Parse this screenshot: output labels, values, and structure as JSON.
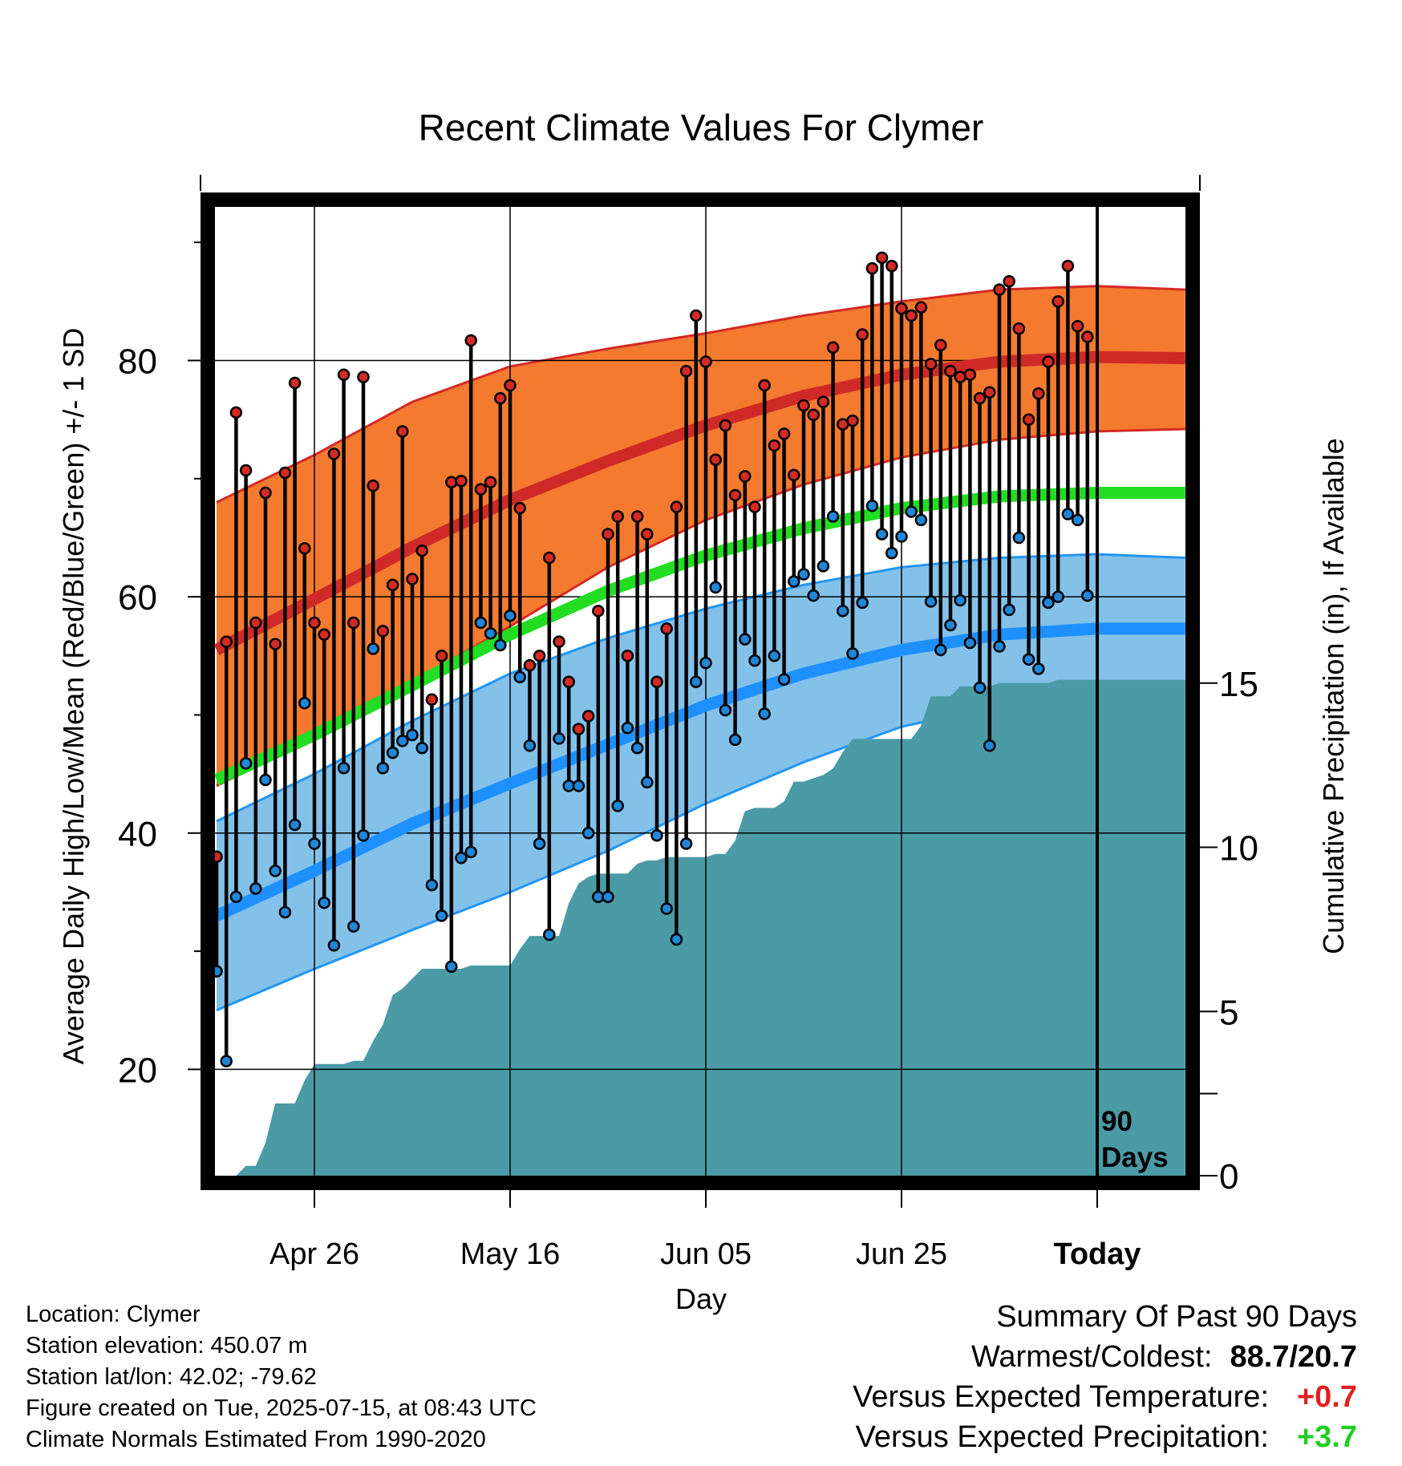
{
  "chart_data": {
    "type": "line",
    "title": "Recent Climate Values For Clymer",
    "xlabel": "Day",
    "ylabel": "Average Daily High/Low/Mean (Red/Blue/Green) +/- 1 SD",
    "y2label": "Cumulative Precipitation (in), If Available",
    "x_tick_labels": [
      "Apr 26",
      "May 16",
      "Jun 05",
      "Jun 25",
      "Today"
    ],
    "x_tick_days": [
      10,
      30,
      50,
      70,
      90
    ],
    "xlim": [
      0,
      99
    ],
    "ylim": [
      11,
      93
    ],
    "y_ticks": [
      20,
      40,
      60,
      80
    ],
    "y2lim": [
      0,
      29.5
    ],
    "y2_ticks": [
      0,
      5,
      10,
      15
    ],
    "today_marker_label": "90 Days",
    "grid": true,
    "colors": {
      "high_band": "#f47a30",
      "high_band_edge": "#d42a24",
      "high_mean": "#cf2a27",
      "low_band": "#83c1e9",
      "low_band_edge": "#2196f3",
      "low_mean": "#1e90ff",
      "mean": "#22dd22",
      "precip": "#4a9ba5",
      "high_marker": "#d42a24",
      "low_marker": "#1f86d8"
    },
    "normals_days": [
      0,
      10,
      20,
      30,
      40,
      50,
      60,
      70,
      80,
      90,
      99
    ],
    "normal_high": [
      55.5,
      59.8,
      64.2,
      68.2,
      71.5,
      74.5,
      77.0,
      78.8,
      79.9,
      80.3,
      80.2
    ],
    "normal_high_sd_upper": [
      68.0,
      72.0,
      76.5,
      79.5,
      81.0,
      82.3,
      83.8,
      85.0,
      86.0,
      86.3,
      86.0
    ],
    "normal_high_sd_lower": [
      44.0,
      48.0,
      52.8,
      57.5,
      62.5,
      66.5,
      69.5,
      71.8,
      73.3,
      74.0,
      74.2
    ],
    "normal_mean": [
      44.5,
      48.3,
      52.5,
      56.8,
      60.5,
      63.5,
      65.8,
      67.5,
      68.5,
      68.8,
      68.8
    ],
    "normal_low": [
      33.0,
      36.8,
      40.8,
      44.2,
      47.5,
      50.8,
      53.5,
      55.5,
      56.8,
      57.3,
      57.3
    ],
    "normal_low_sd_upper": [
      41.0,
      45.0,
      49.5,
      53.5,
      56.5,
      59.0,
      61.0,
      62.5,
      63.3,
      63.6,
      63.3
    ],
    "normal_low_sd_lower": [
      25.0,
      28.5,
      31.8,
      35.0,
      38.5,
      42.5,
      46.0,
      49.0,
      50.8,
      51.5,
      51.8
    ],
    "series": [
      {
        "name": "High",
        "x": [
          0,
          1,
          2,
          3,
          4,
          5,
          6,
          7,
          8,
          9,
          10,
          11,
          12,
          13,
          14,
          15,
          16,
          17,
          18,
          19,
          20,
          21,
          22,
          23,
          24,
          25,
          26,
          27,
          28,
          29,
          30,
          31,
          32,
          33,
          34,
          35,
          36,
          37,
          38,
          39,
          40,
          41,
          42,
          43,
          44,
          45,
          46,
          47,
          48,
          49,
          50,
          51,
          52,
          53,
          54,
          55,
          56,
          57,
          58,
          59,
          60,
          61,
          62,
          63,
          64,
          65,
          66,
          67,
          68,
          69,
          70,
          71,
          72,
          73,
          74,
          75,
          76,
          77,
          78,
          79,
          80,
          81,
          82,
          83,
          84,
          85,
          86,
          87,
          88,
          89
        ],
        "values": [
          38.0,
          56.2,
          75.6,
          70.7,
          57.8,
          68.8,
          56.0,
          70.5,
          78.1,
          64.1,
          57.8,
          56.8,
          72.1,
          78.8,
          57.8,
          78.6,
          69.4,
          57.1,
          61.0,
          74.0,
          61.5,
          63.9,
          51.3,
          55.0,
          69.7,
          69.8,
          81.7,
          69.1,
          69.7,
          76.8,
          77.9,
          67.5,
          54.2,
          55.0,
          63.3,
          56.2,
          52.8,
          48.8,
          49.9,
          58.8,
          65.3,
          66.8,
          55.0,
          66.8,
          65.3,
          52.8,
          57.3,
          67.6,
          79.1,
          83.8,
          79.9,
          71.6,
          74.5,
          68.6,
          70.2,
          67.6,
          77.9,
          72.8,
          73.8,
          70.3,
          76.2,
          75.4,
          76.5,
          81.1,
          74.6,
          74.9,
          82.2,
          87.8,
          88.7,
          88.0,
          84.4,
          83.8,
          84.5,
          79.7,
          81.3,
          79.1,
          78.6,
          78.8,
          76.8,
          77.3,
          86.0,
          86.7,
          82.7,
          75.0,
          77.2,
          79.9,
          85.0,
          88.0,
          82.9,
          82.0
        ]
      },
      {
        "name": "Low",
        "x": [
          0,
          1,
          2,
          3,
          4,
          5,
          6,
          7,
          8,
          9,
          10,
          11,
          12,
          13,
          14,
          15,
          16,
          17,
          18,
          19,
          20,
          21,
          22,
          23,
          24,
          25,
          26,
          27,
          28,
          29,
          30,
          31,
          32,
          33,
          34,
          35,
          36,
          37,
          38,
          39,
          40,
          41,
          42,
          43,
          44,
          45,
          46,
          47,
          48,
          49,
          50,
          51,
          52,
          53,
          54,
          55,
          56,
          57,
          58,
          59,
          60,
          61,
          62,
          63,
          64,
          65,
          66,
          67,
          68,
          69,
          70,
          71,
          72,
          73,
          74,
          75,
          76,
          77,
          78,
          79,
          80,
          81,
          82,
          83,
          84,
          85,
          86,
          87,
          88,
          89
        ],
        "values": [
          28.3,
          20.7,
          34.6,
          45.9,
          35.3,
          44.5,
          36.8,
          33.3,
          40.7,
          51.0,
          39.1,
          34.1,
          30.5,
          45.5,
          32.1,
          39.8,
          55.6,
          45.5,
          46.8,
          47.8,
          48.3,
          47.2,
          35.6,
          33.0,
          28.7,
          37.9,
          38.4,
          57.8,
          56.9,
          55.9,
          58.4,
          53.2,
          47.4,
          39.1,
          31.4,
          48.0,
          44.0,
          44.0,
          40.0,
          34.6,
          34.6,
          42.3,
          48.9,
          47.2,
          44.3,
          39.8,
          33.6,
          31.0,
          39.1,
          52.8,
          54.4,
          60.8,
          50.4,
          47.9,
          56.4,
          54.6,
          50.1,
          55.0,
          53.0,
          61.3,
          61.9,
          60.1,
          62.6,
          66.8,
          58.8,
          55.2,
          59.5,
          67.7,
          65.3,
          63.7,
          65.1,
          67.2,
          66.5,
          59.6,
          55.5,
          57.6,
          59.7,
          56.1,
          52.3,
          47.4,
          55.8,
          58.9,
          65.0,
          54.7,
          53.9,
          59.5,
          60.0,
          67.0,
          66.5,
          60.1
        ]
      }
    ],
    "precip_cumulative": {
      "x": [
        0,
        2,
        3,
        4,
        5,
        6,
        7,
        8,
        9,
        10,
        11,
        12,
        13,
        14,
        15,
        16,
        17,
        18,
        19,
        20,
        21,
        22,
        23,
        24,
        25,
        26,
        27,
        28,
        29,
        30,
        31,
        32,
        33,
        34,
        35,
        36,
        37,
        38,
        39,
        40,
        41,
        42,
        43,
        44,
        45,
        46,
        47,
        48,
        49,
        50,
        51,
        52,
        53,
        54,
        55,
        56,
        57,
        58,
        59,
        60,
        61,
        62,
        63,
        64,
        65,
        66,
        67,
        68,
        69,
        70,
        71,
        72,
        73,
        74,
        75,
        76,
        77,
        78,
        79,
        80,
        81,
        82,
        83,
        84,
        85,
        86,
        87,
        88,
        89,
        90,
        91,
        92,
        93,
        94,
        95,
        96,
        97,
        98,
        99
      ],
      "values": [
        0.0,
        0.0,
        0.3,
        0.3,
        1.0,
        2.2,
        2.2,
        2.2,
        2.9,
        3.4,
        3.4,
        3.4,
        3.4,
        3.5,
        3.5,
        4.1,
        4.6,
        5.5,
        5.7,
        6.0,
        6.3,
        6.3,
        6.3,
        6.3,
        6.3,
        6.4,
        6.4,
        6.4,
        6.4,
        6.4,
        6.9,
        7.3,
        7.3,
        7.3,
        7.3,
        8.3,
        8.9,
        9.1,
        9.2,
        9.2,
        9.2,
        9.2,
        9.5,
        9.6,
        9.6,
        9.7,
        9.7,
        9.7,
        9.7,
        9.7,
        9.8,
        9.8,
        10.2,
        11.1,
        11.2,
        11.2,
        11.2,
        11.4,
        12.0,
        12.0,
        12.1,
        12.2,
        12.4,
        12.9,
        13.3,
        13.3,
        13.3,
        13.3,
        13.3,
        13.3,
        13.3,
        13.7,
        14.6,
        14.6,
        14.6,
        14.9,
        14.9,
        14.9,
        14.9,
        15.0,
        15.0,
        15.0,
        15.0,
        15.0,
        15.0,
        15.1,
        15.1,
        15.1,
        15.1,
        15.1,
        15.1,
        15.1,
        15.1,
        15.1,
        15.1,
        15.1,
        15.1,
        15.1,
        15.1
      ]
    }
  },
  "info": {
    "location": "Location: Clymer",
    "elevation": "Station elevation: 450.07 m",
    "latlon": "Station lat/lon: 42.02; -79.62",
    "created": "Figure created on Tue, 2025-07-15, at 08:43 UTC",
    "normals": "Climate Normals Estimated From 1990-2020"
  },
  "summary": {
    "title": "Summary Of Past 90 Days",
    "warmest_coldest_label": "Warmest/Coldest:",
    "warmest_coldest_value": "88.7/20.7",
    "temp_label": "Versus Expected Temperature:",
    "temp_value": "+0.7",
    "temp_color": "#e02020",
    "precip_label": "Versus Expected Precipitation:",
    "precip_value": "+3.7",
    "precip_color": "#22cc22"
  }
}
